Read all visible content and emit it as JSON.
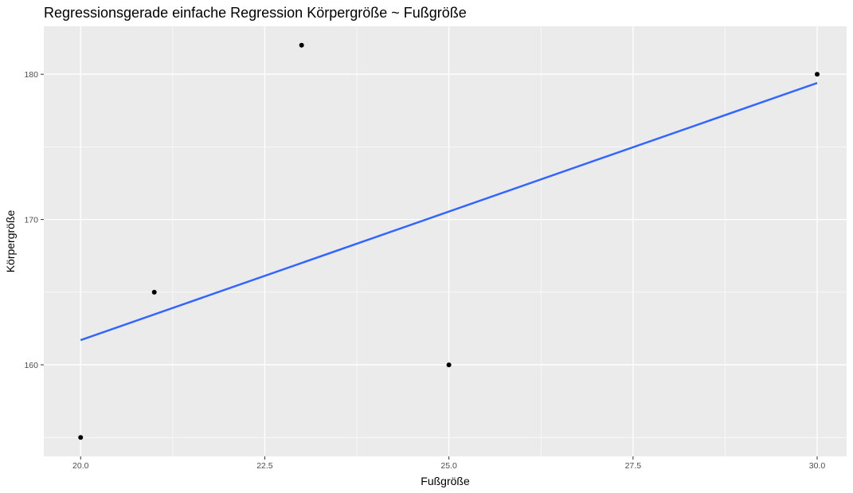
{
  "chart_data": {
    "type": "scatter",
    "title": "Regressionsgerade einfache Regression Körpergröße ~ Fußgröße",
    "xlabel": "Fußgröße",
    "ylabel": "Körpergröße",
    "xlim": [
      19.5,
      30.4
    ],
    "ylim": [
      153.7,
      183.3
    ],
    "x_ticks": [
      20.0,
      22.5,
      25.0,
      27.5,
      30.0
    ],
    "x_tick_labels": [
      "20.0",
      "22.5",
      "25.0",
      "27.5",
      "30.0"
    ],
    "y_ticks": [
      160,
      170,
      180
    ],
    "y_tick_labels": [
      "160",
      "170",
      "180"
    ],
    "grid": true,
    "points": [
      {
        "x": 20,
        "y": 155
      },
      {
        "x": 21,
        "y": 165
      },
      {
        "x": 23,
        "y": 182
      },
      {
        "x": 25,
        "y": 160
      },
      {
        "x": 30,
        "y": 180
      }
    ],
    "regression_line": {
      "x": [
        20,
        30
      ],
      "y": [
        161.7,
        179.4
      ]
    },
    "colors": {
      "panel_background": "#ebebeb",
      "grid": "#ffffff",
      "point": "#000000",
      "line": "#3366ff"
    }
  }
}
